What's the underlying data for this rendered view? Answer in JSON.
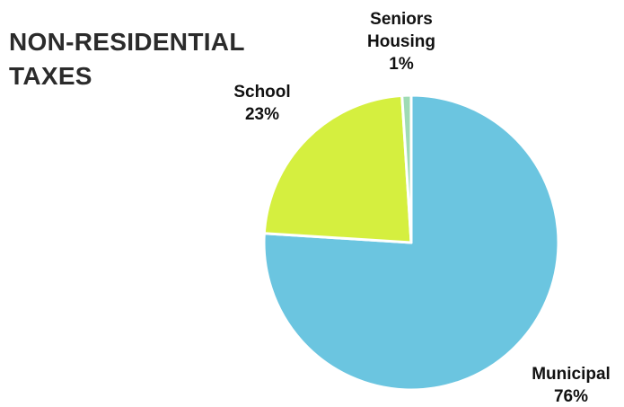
{
  "chart_data": {
    "type": "pie",
    "title_lines": [
      "NON-RESIDENTIAL",
      "TAXES"
    ],
    "slices": [
      {
        "label_lines": [
          "Municipal"
        ],
        "pct_label": "76%",
        "value": 76,
        "color": "#6bc5e0"
      },
      {
        "label_lines": [
          "School"
        ],
        "pct_label": "23%",
        "value": 23,
        "color": "#d5ef3f"
      },
      {
        "label_lines": [
          "Seniors",
          "Housing"
        ],
        "pct_label": "1%",
        "value": 1,
        "color": "#9fdbb4"
      }
    ]
  }
}
